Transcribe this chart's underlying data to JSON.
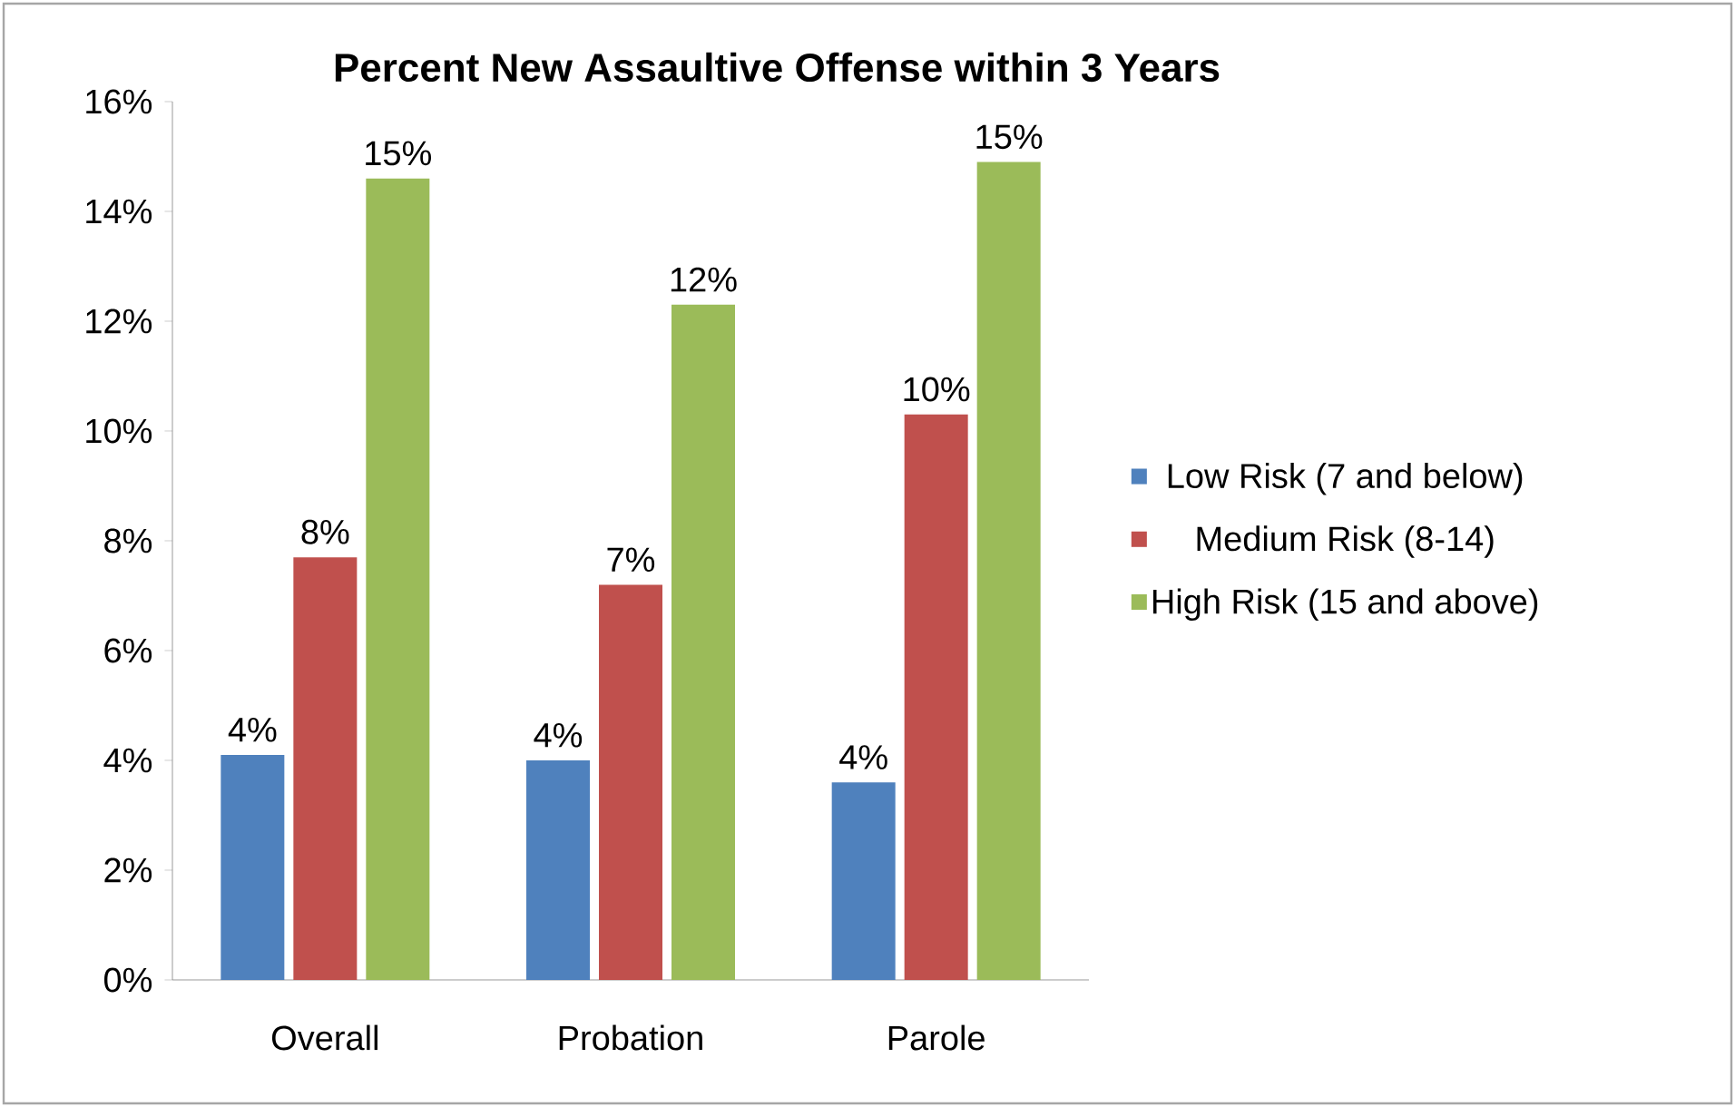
{
  "chart_data": {
    "type": "bar",
    "title": "Percent New Assaultive Offense within 3 Years",
    "categories": [
      "Overall",
      "Probation",
      "Parole"
    ],
    "series": [
      {
        "name": "Low Risk (7 and below)",
        "color": "#4f81bd",
        "values": [
          4.1,
          4.0,
          3.6
        ],
        "value_labels": [
          "4%",
          "4%",
          "4%"
        ]
      },
      {
        "name": "Medium Risk (8-14)",
        "color": "#c0504d",
        "values": [
          7.7,
          7.2,
          10.3
        ],
        "value_labels": [
          "8%",
          "7%",
          "10%"
        ]
      },
      {
        "name": "High Risk (15 and above)",
        "color": "#9bbb59",
        "values": [
          14.6,
          12.3,
          14.9
        ],
        "value_labels": [
          "15%",
          "12%",
          "15%"
        ]
      }
    ],
    "ylim": [
      0,
      16
    ],
    "yticks": [
      {
        "value": 0,
        "label": "0%"
      },
      {
        "value": 2,
        "label": "2%"
      },
      {
        "value": 4,
        "label": "4%"
      },
      {
        "value": 6,
        "label": "6%"
      },
      {
        "value": 8,
        "label": "8%"
      },
      {
        "value": 10,
        "label": "10%"
      },
      {
        "value": 12,
        "label": "12%"
      },
      {
        "value": 14,
        "label": "14%"
      },
      {
        "value": 16,
        "label": "16%"
      }
    ],
    "legend": "right"
  }
}
